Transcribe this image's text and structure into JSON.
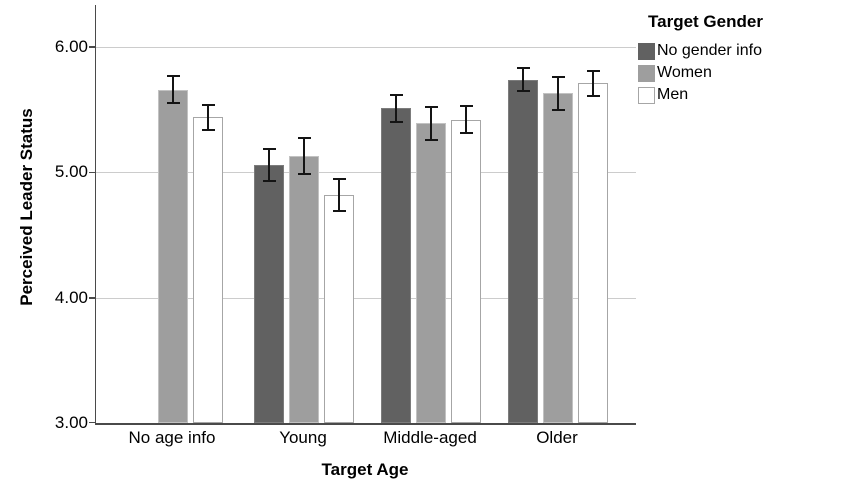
{
  "chart_data": {
    "type": "bar",
    "title": "",
    "xlabel": "Target Age",
    "ylabel": "Perceived Leader Status",
    "categories": [
      "No age info",
      "Young",
      "Middle-aged",
      "Older"
    ],
    "series": [
      {
        "name": "No gender info",
        "color": "#616161",
        "border_color": "#7c7c7c",
        "values": [
          null,
          5.06,
          5.51,
          5.74
        ],
        "errors": [
          null,
          0.13,
          0.11,
          0.09
        ]
      },
      {
        "name": "Women",
        "color": "#9e9e9e",
        "border_color": "#c2c2c2",
        "values": [
          5.66,
          5.13,
          5.39,
          5.63
        ],
        "errors": [
          0.11,
          0.14,
          0.13,
          0.13
        ]
      },
      {
        "name": "Men",
        "color": "#ffffff",
        "border_color": "#a6a6a6",
        "values": [
          5.44,
          4.82,
          5.42,
          5.71
        ],
        "errors": [
          0.1,
          0.13,
          0.11,
          0.1
        ]
      }
    ],
    "ylim": [
      3,
      6
    ],
    "ytick_values": [
      6,
      5,
      4,
      3
    ],
    "yticks": [
      "6.00",
      "5.00",
      "4.00",
      "3.00"
    ],
    "grid": true,
    "error_bars": true,
    "legend": {
      "title": "Target Gender",
      "position": "top-right"
    },
    "colors": {
      "grid": "#cccccc",
      "axis": "#4a4a4a",
      "error_bar": "#141414"
    }
  }
}
